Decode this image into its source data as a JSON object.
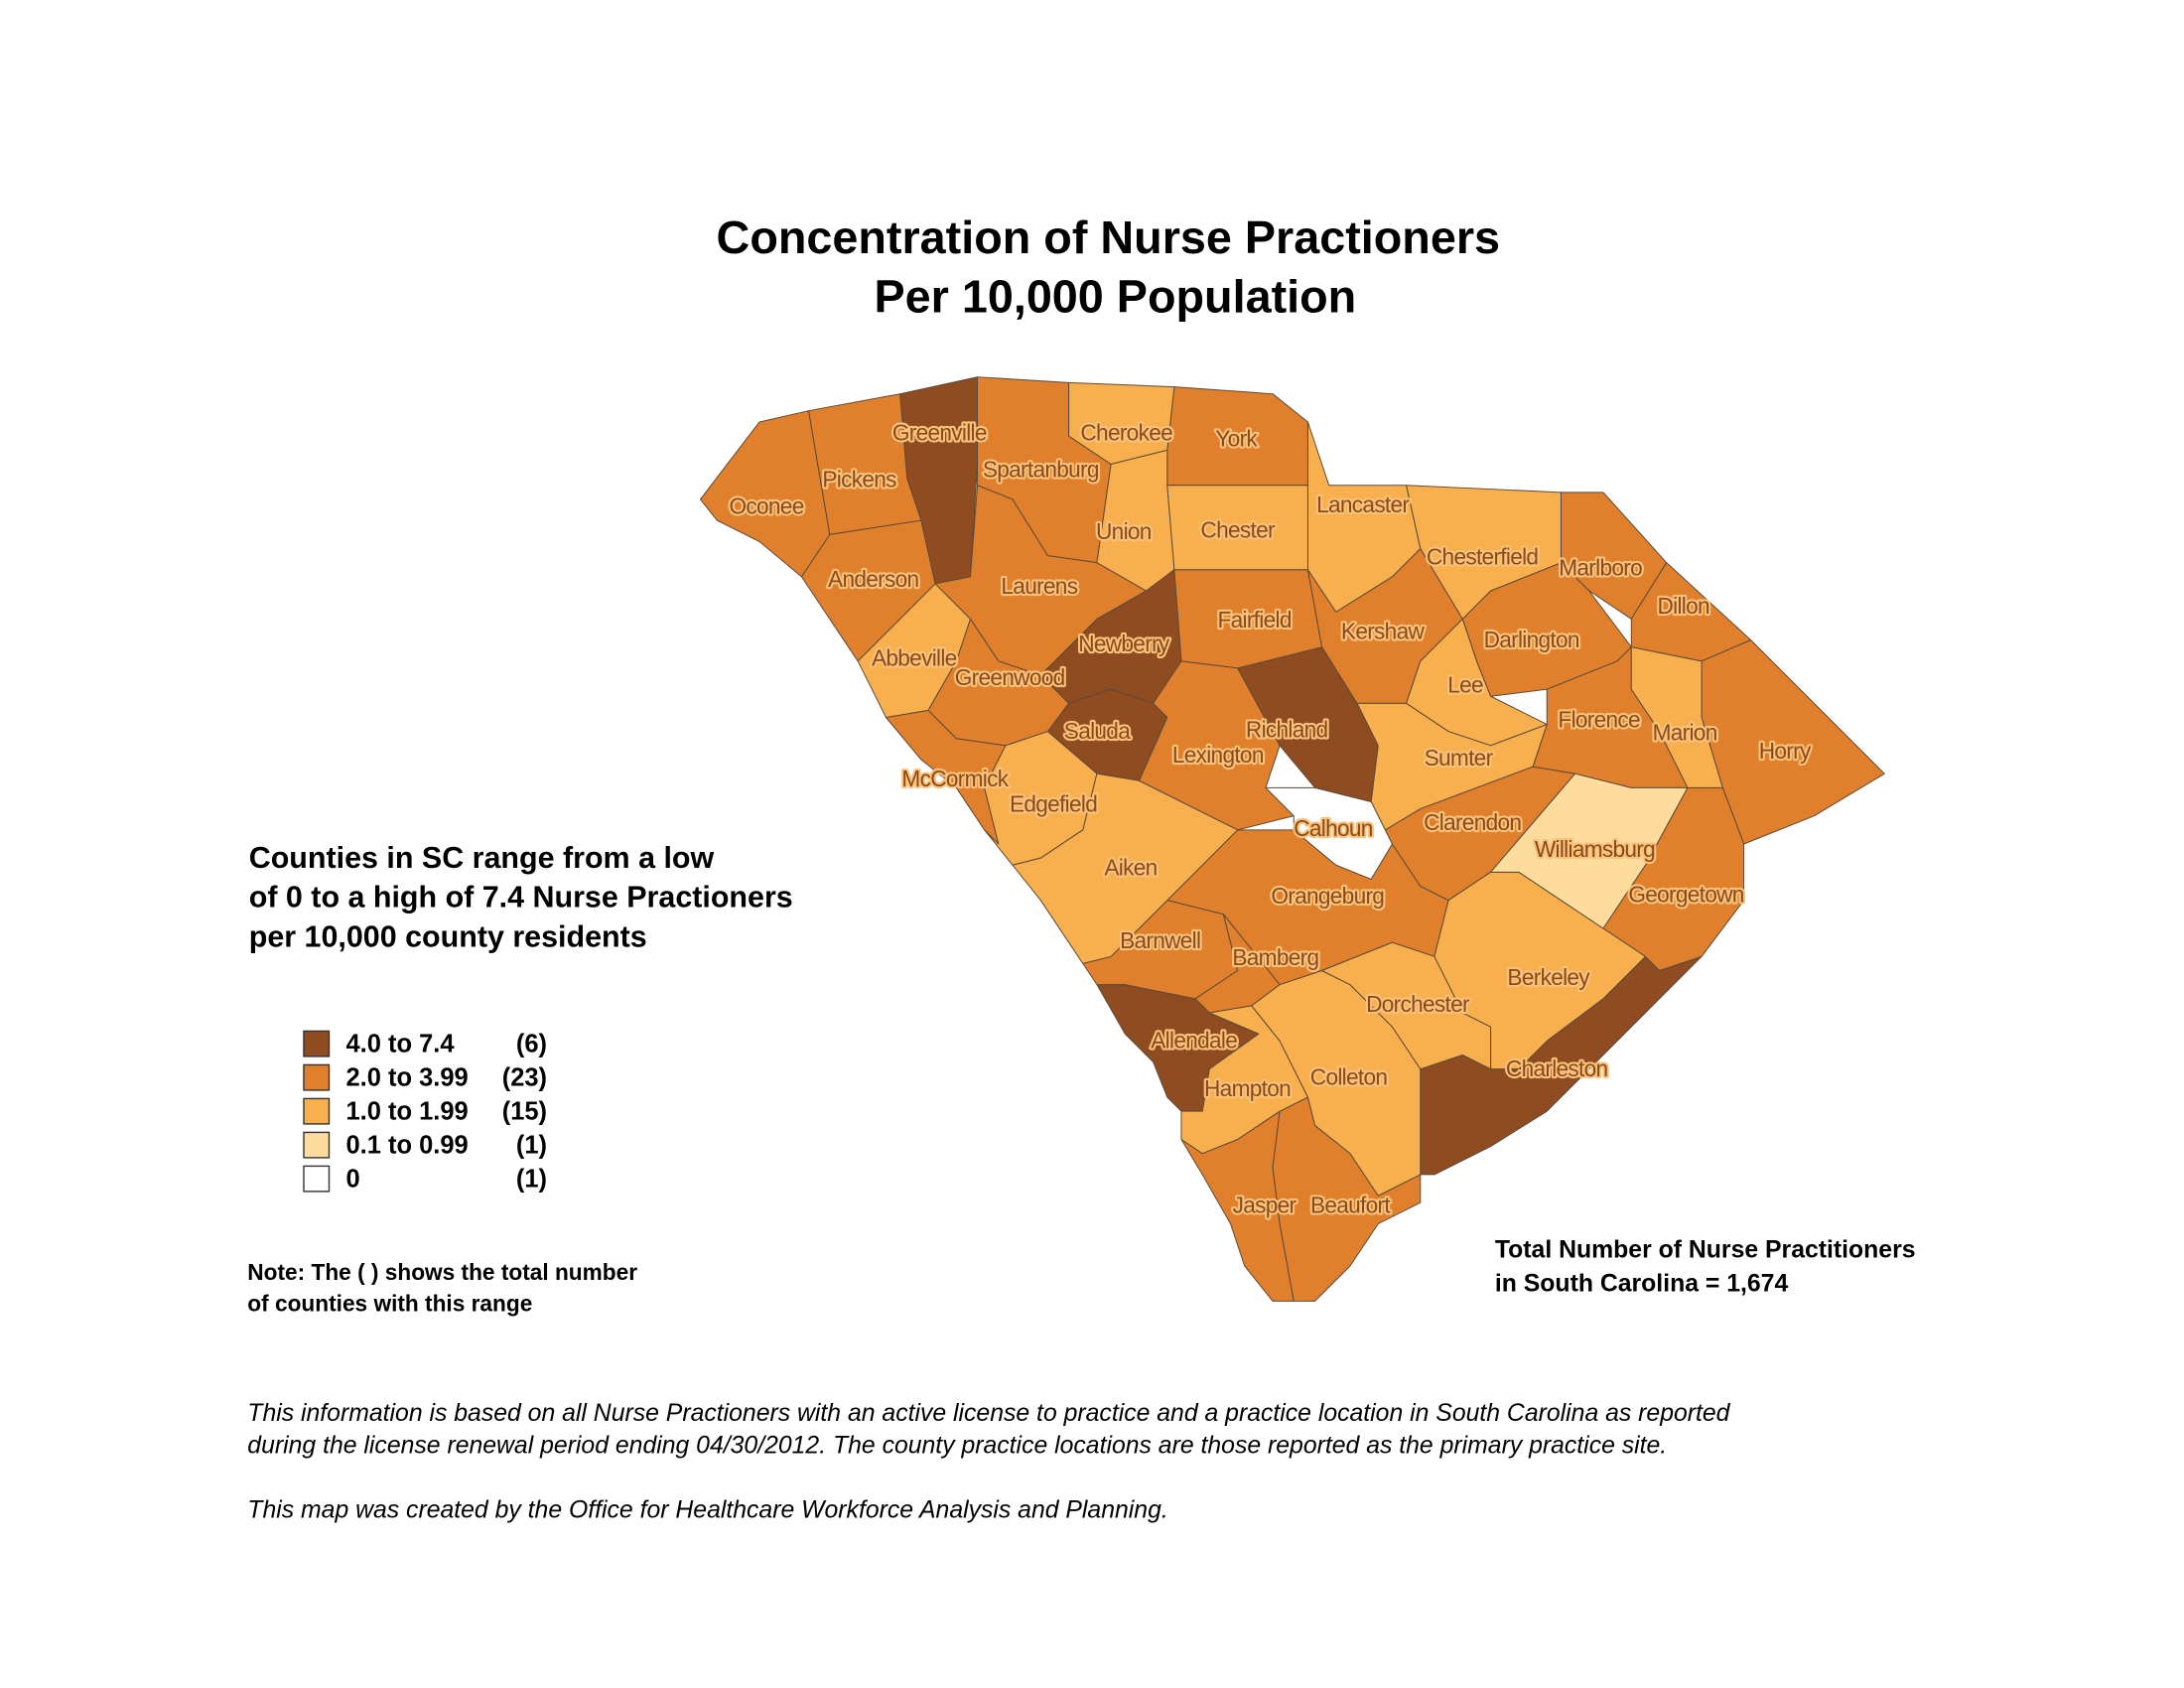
{
  "title_line1": "Concentration of Nurse Practioners",
  "title_line2": "Per 10,000 Population",
  "range_text": [
    "Counties in SC range from a low",
    "of 0 to a high of 7.4 Nurse Practioners",
    "per 10,000 county residents"
  ],
  "legend": [
    {
      "label": "4.0 to 7.4",
      "count": "(6)",
      "color": "#8e4c20"
    },
    {
      "label": "2.0 to 3.99",
      "count": "(23)",
      "color": "#e0802c"
    },
    {
      "label": "1.0 to 1.99",
      "count": "(15)",
      "color": "#f7b04d"
    },
    {
      "label": "0.1 to 0.99",
      "count": "(1)",
      "color": "#fddc9e"
    },
    {
      "label": "0",
      "count": "(1)",
      "color": "#ffffff"
    }
  ],
  "note": [
    "Note: The ( ) shows the total number",
    "of counties with this range"
  ],
  "total": [
    "Total Number of Nurse Practitioners",
    "in South Carolina = 1,674"
  ],
  "footer": [
    "This information is based on all Nurse Practioners with an active license to practice and a practice location in South Carolina as reported",
    "during the license renewal period ending 04/30/2012.  The county practice locations are those reported as the primary practice site.",
    "This map was created by the Office for Healthcare Workforce Analysis and Planning."
  ],
  "counties": [
    {
      "name": "Greenville",
      "class": 0
    },
    {
      "name": "Newberry",
      "class": 0
    },
    {
      "name": "Saluda",
      "class": 0
    },
    {
      "name": "Richland",
      "class": 0
    },
    {
      "name": "Allendale",
      "class": 0
    },
    {
      "name": "Charleston",
      "class": 0
    },
    {
      "name": "Oconee",
      "class": 1
    },
    {
      "name": "Pickens",
      "class": 1
    },
    {
      "name": "Anderson",
      "class": 1
    },
    {
      "name": "Spartanburg",
      "class": 1
    },
    {
      "name": "York",
      "class": 1
    },
    {
      "name": "Laurens",
      "class": 1
    },
    {
      "name": "Greenwood",
      "class": 1
    },
    {
      "name": "McCormick",
      "class": 1
    },
    {
      "name": "Fairfield",
      "class": 1
    },
    {
      "name": "Kershaw",
      "class": 1
    },
    {
      "name": "Lexington",
      "class": 1
    },
    {
      "name": "Orangeburg",
      "class": 1
    },
    {
      "name": "Barnwell",
      "class": 1
    },
    {
      "name": "Bamberg",
      "class": 1
    },
    {
      "name": "Jasper",
      "class": 1
    },
    {
      "name": "Beaufort",
      "class": 1
    },
    {
      "name": "Clarendon",
      "class": 1
    },
    {
      "name": "Darlington",
      "class": 1
    },
    {
      "name": "Florence",
      "class": 1
    },
    {
      "name": "Marlboro",
      "class": 1
    },
    {
      "name": "Dillon",
      "class": 1
    },
    {
      "name": "Horry",
      "class": 1
    },
    {
      "name": "Georgetown",
      "class": 1
    },
    {
      "name": "Cherokee",
      "class": 2
    },
    {
      "name": "Union",
      "class": 2
    },
    {
      "name": "Chester",
      "class": 2
    },
    {
      "name": "Lancaster",
      "class": 2
    },
    {
      "name": "Chesterfield",
      "class": 2
    },
    {
      "name": "Lee",
      "class": 2
    },
    {
      "name": "Sumter",
      "class": 2
    },
    {
      "name": "Marion",
      "class": 2
    },
    {
      "name": "Abbeville",
      "class": 2
    },
    {
      "name": "Edgefield",
      "class": 2
    },
    {
      "name": "Aiken",
      "class": 2
    },
    {
      "name": "Hampton",
      "class": 2
    },
    {
      "name": "Colleton",
      "class": 2
    },
    {
      "name": "Dorchester",
      "class": 2
    },
    {
      "name": "Berkeley",
      "class": 2
    },
    {
      "name": "Williamsburg",
      "class": 3
    },
    {
      "name": "Calhoun",
      "class": 4
    }
  ]
}
